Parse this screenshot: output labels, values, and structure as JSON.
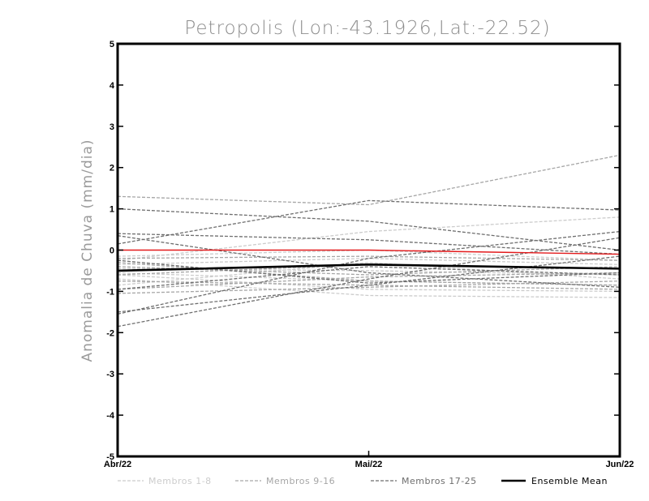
{
  "chart_data": {
    "type": "line",
    "title": "Petropolis (Lon:-43.1926,Lat:-22.52)",
    "ylabel": "Anomalia de Chuva (mm/dia)",
    "xlabel": "",
    "categories": [
      "Abr/22",
      "Mai/22",
      "Jun/22"
    ],
    "ylim": [
      -5,
      5
    ],
    "yticks": [
      "-5",
      "-4",
      "-3",
      "-2",
      "-1",
      "0",
      "1",
      "2",
      "3",
      "4",
      "5"
    ],
    "grid": false,
    "legend_position": "bottom",
    "legend": [
      {
        "label": "Membros 1-8",
        "color": "#cccccc",
        "style": "dashed"
      },
      {
        "label": "Membros 9-16",
        "color": "#a6a6a6",
        "style": "dashed"
      },
      {
        "label": "Membros 17-25",
        "color": "#6e6e6e",
        "style": "dashed"
      },
      {
        "label": "Ensemble Mean",
        "color": "#000000",
        "style": "solid"
      }
    ],
    "groups": [
      {
        "label": "Membros 1-8",
        "color": "#cccccc",
        "members": [
          [
            -0.25,
            0.45,
            0.8
          ],
          [
            -0.35,
            -0.2,
            -0.35
          ],
          [
            -0.55,
            -0.75,
            -0.85
          ],
          [
            -0.7,
            -1.1,
            -1.15
          ],
          [
            -0.45,
            -0.5,
            -0.6
          ],
          [
            -0.15,
            0.0,
            -0.25
          ],
          [
            -0.6,
            -0.95,
            -1.0
          ],
          [
            -0.85,
            -0.3,
            -0.7
          ]
        ]
      },
      {
        "label": "Membros 9-16",
        "color": "#a6a6a6",
        "members": [
          [
            1.3,
            1.1,
            2.3
          ],
          [
            -0.2,
            -0.15,
            -0.25
          ],
          [
            -0.75,
            -0.85,
            -0.95
          ],
          [
            -0.4,
            -0.6,
            -0.4
          ],
          [
            -0.95,
            -0.65,
            -0.55
          ],
          [
            -0.6,
            -0.35,
            -0.45
          ],
          [
            -1.05,
            -0.9,
            -0.75
          ],
          [
            -0.3,
            -0.75,
            -0.85
          ]
        ]
      },
      {
        "label": "Membros 17-25",
        "color": "#6e6e6e",
        "members": [
          [
            1.0,
            0.7,
            0.0
          ],
          [
            0.4,
            0.25,
            -0.1
          ],
          [
            0.15,
            1.2,
            0.97
          ],
          [
            -1.5,
            -0.85,
            -0.15
          ],
          [
            -1.85,
            -0.7,
            0.3
          ],
          [
            -0.95,
            -0.4,
            -0.6
          ],
          [
            0.35,
            -0.55,
            -0.9
          ],
          [
            -1.55,
            -0.2,
            0.45
          ],
          [
            -0.25,
            -0.8,
            -0.55
          ]
        ]
      }
    ],
    "reference_line": {
      "values": [
        0,
        0,
        -0.1
      ],
      "color": "#e31a1c"
    },
    "ensemble_mean": {
      "name": "Ensemble Mean",
      "values": [
        -0.5,
        -0.35,
        -0.45
      ],
      "color": "#000000"
    }
  }
}
